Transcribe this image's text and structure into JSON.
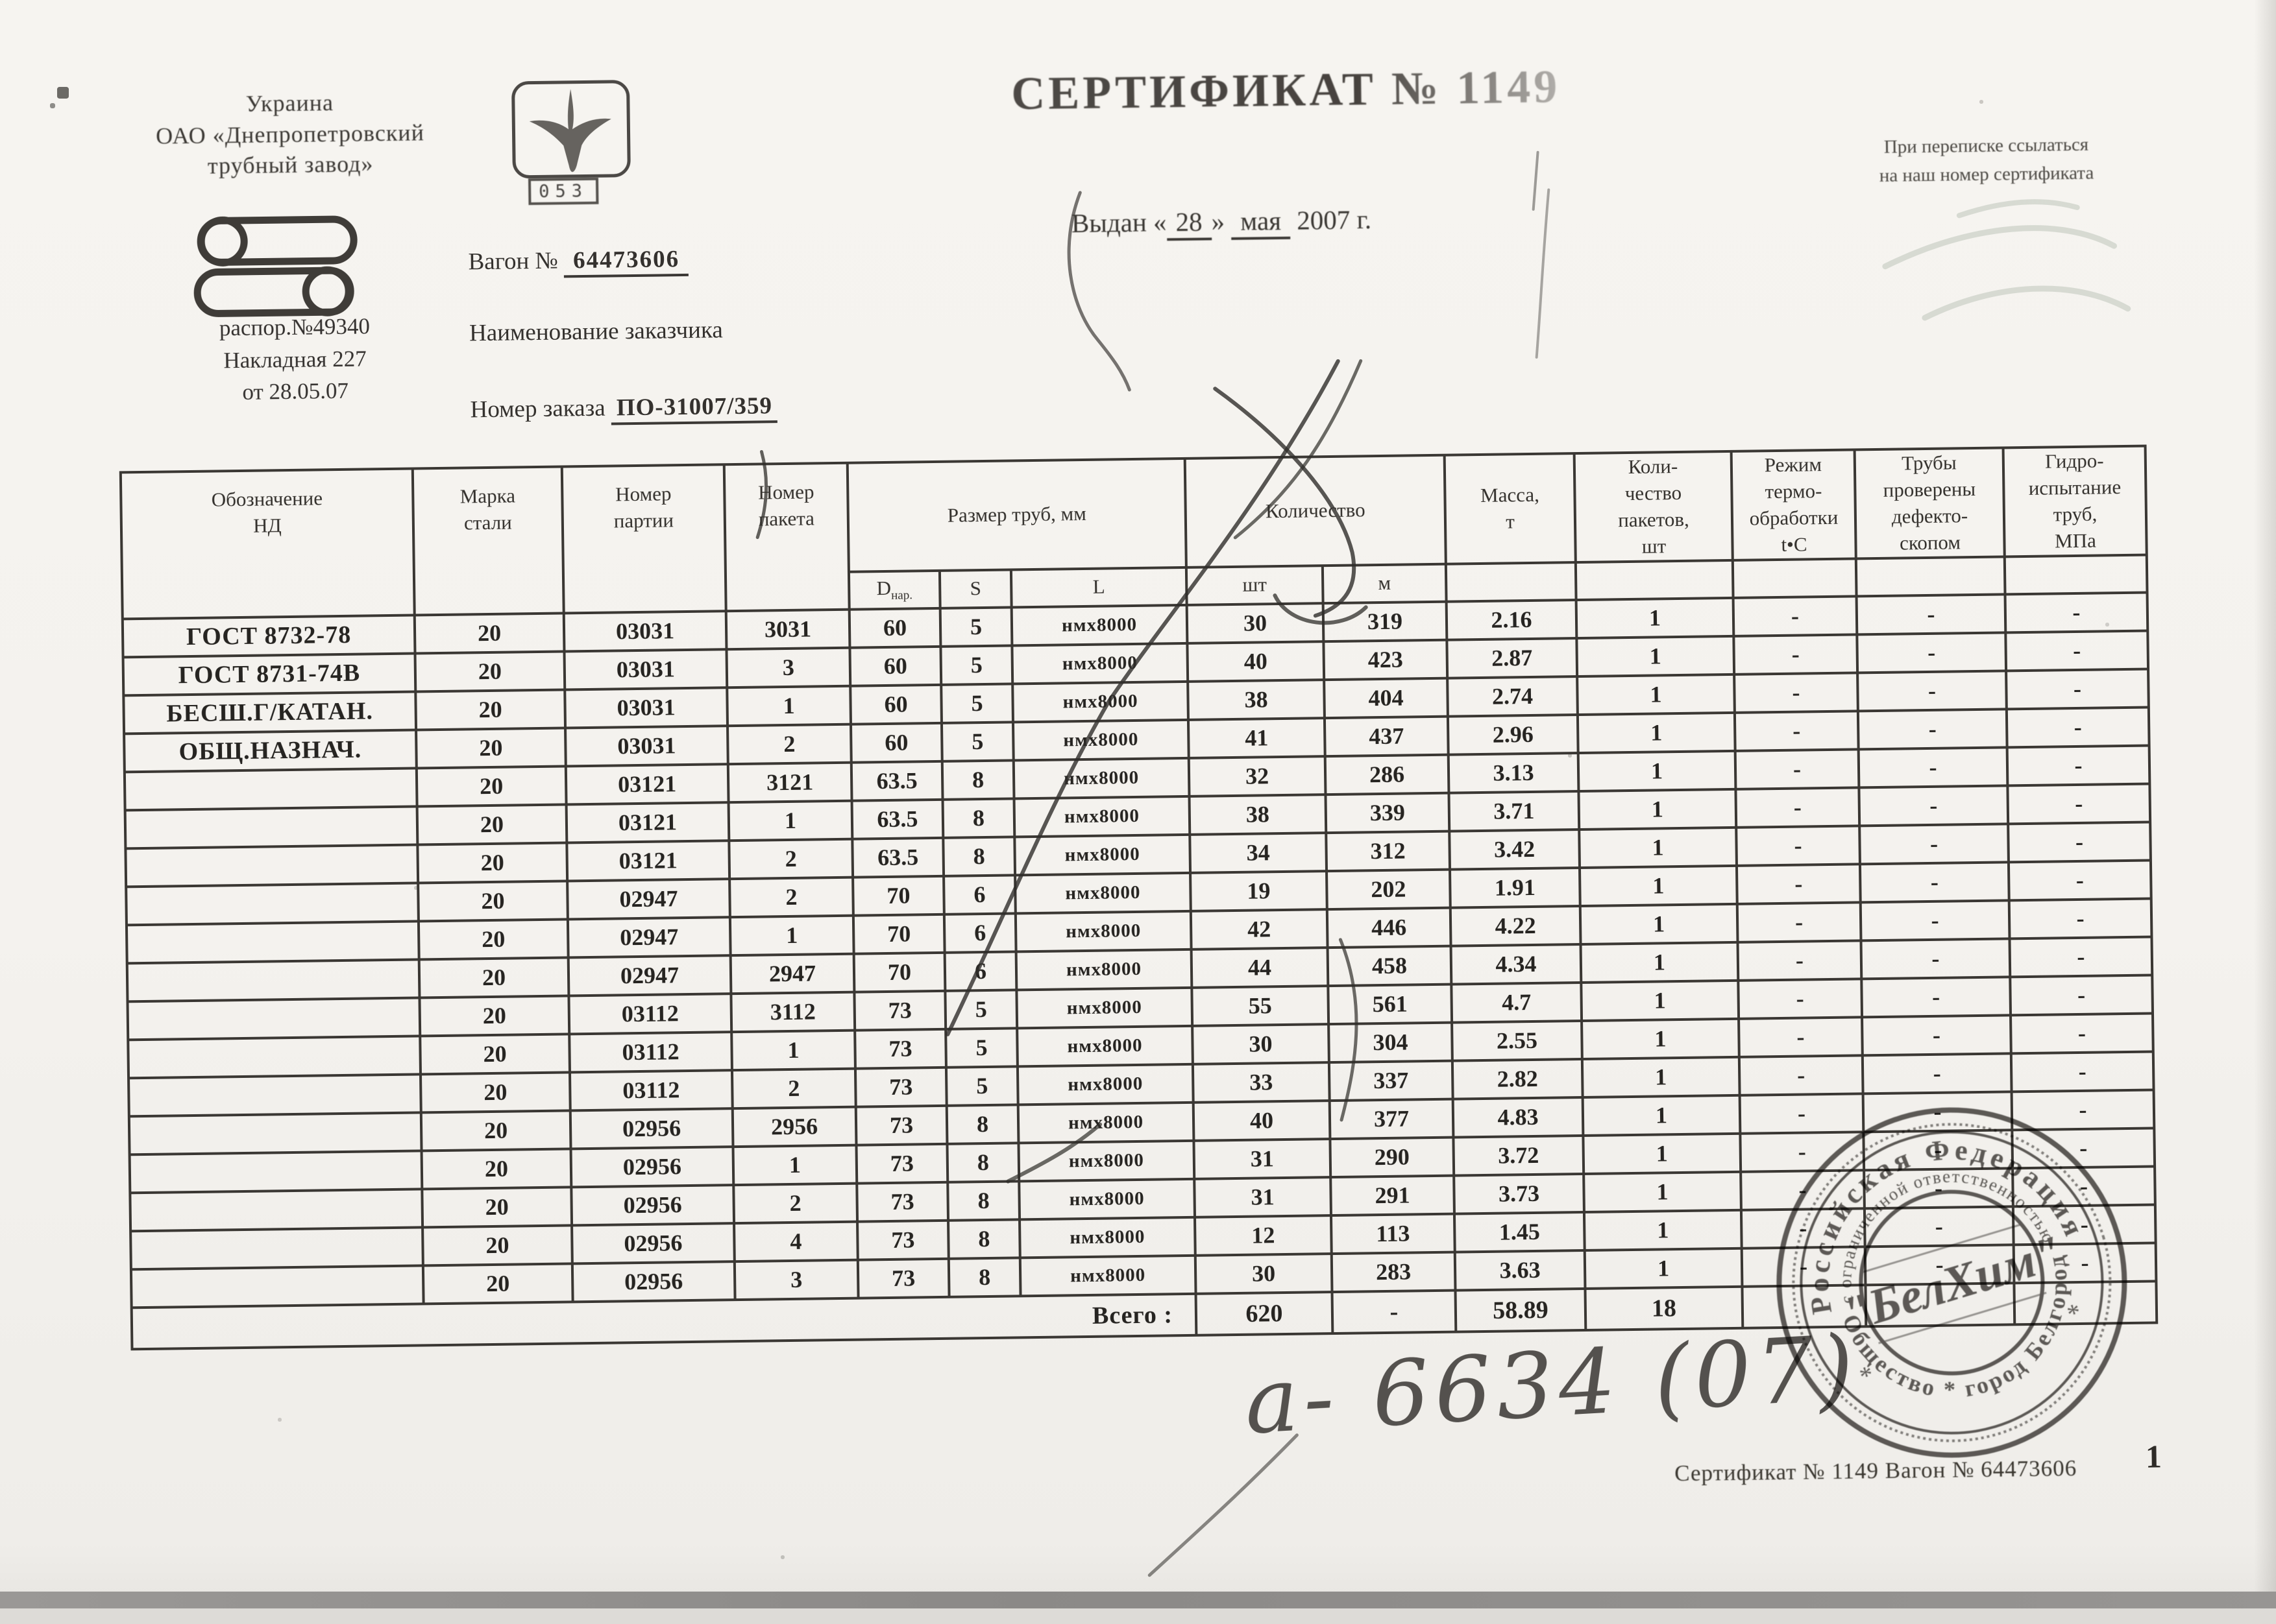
{
  "page": {
    "country": "Украина",
    "org_line1": "ОАО «Днепропетровский",
    "org_line2": "трубный завод»",
    "logo_badge": "053",
    "dispatch_line1": "распор.№49340",
    "dispatch_line2": "Накладная  227",
    "dispatch_line3": "от 28.05.07",
    "wagon_label": "Вагон №",
    "wagon_number": "64473606",
    "customer_label": "Наименование заказчика",
    "order_label": "Номер заказа",
    "order_number": "ПО-31007/359",
    "title": "СЕРТИФИКАТ № 1149",
    "issued_label": "Выдан «",
    "issued_day": "28",
    "issued_close": "»",
    "issued_month": "мая",
    "issued_year": "2007",
    "issued_suffix": "г.",
    "note_line1": "При переписке ссылаться",
    "note_line2": "на наш номер сертификата"
  },
  "table": {
    "columns": {
      "designation": "Обозначение\nНД",
      "steel_grade": "Марка\nстали",
      "batch_no": "Номер\nпартии",
      "pack_no": "Номер\nпакета",
      "pipe_size": "Размер труб, мм",
      "quantity": "Количество",
      "mass": "Масса,\nт",
      "packs_count": "Коли-\nчество\nпакетов,\nшт",
      "heat_mode": "Режим\nтермо-\nобработки\nt•C",
      "defect_check": "Трубы\nпроверены\nдефекто-\nскопом",
      "hydro_test": "Гидро-\nиспытание\nтруб,\nМПа",
      "sub_d": "D",
      "sub_d_sub": "нар.",
      "sub_s": "S",
      "sub_l": "L",
      "sub_sht": "шт",
      "sub_m": "м"
    },
    "rows": [
      [
        "ГОСТ 8732-78",
        "20",
        "03031",
        "3031",
        "60",
        "5",
        "нмх8000",
        "30",
        "319",
        "2.16",
        "1",
        "-",
        "-",
        "-"
      ],
      [
        "ГОСТ 8731-74В",
        "20",
        "03031",
        "3",
        "60",
        "5",
        "нмх8000",
        "40",
        "423",
        "2.87",
        "1",
        "-",
        "-",
        "-"
      ],
      [
        "БЕСШ.Г/КАТАН.",
        "20",
        "03031",
        "1",
        "60",
        "5",
        "нмх8000",
        "38",
        "404",
        "2.74",
        "1",
        "-",
        "-",
        "-"
      ],
      [
        "ОБЩ.НАЗНАЧ.",
        "20",
        "03031",
        "2",
        "60",
        "5",
        "нмх8000",
        "41",
        "437",
        "2.96",
        "1",
        "-",
        "-",
        "-"
      ],
      [
        "",
        "20",
        "03121",
        "3121",
        "63.5",
        "8",
        "нмх8000",
        "32",
        "286",
        "3.13",
        "1",
        "-",
        "-",
        "-"
      ],
      [
        "",
        "20",
        "03121",
        "1",
        "63.5",
        "8",
        "нмх8000",
        "38",
        "339",
        "3.71",
        "1",
        "-",
        "-",
        "-"
      ],
      [
        "",
        "20",
        "03121",
        "2",
        "63.5",
        "8",
        "нмх8000",
        "34",
        "312",
        "3.42",
        "1",
        "-",
        "-",
        "-"
      ],
      [
        "",
        "20",
        "02947",
        "2",
        "70",
        "6",
        "нмх8000",
        "19",
        "202",
        "1.91",
        "1",
        "-",
        "-",
        "-"
      ],
      [
        "",
        "20",
        "02947",
        "1",
        "70",
        "6",
        "нмх8000",
        "42",
        "446",
        "4.22",
        "1",
        "-",
        "-",
        "-"
      ],
      [
        "",
        "20",
        "02947",
        "2947",
        "70",
        "6",
        "нмх8000",
        "44",
        "458",
        "4.34",
        "1",
        "-",
        "-",
        "-"
      ],
      [
        "",
        "20",
        "03112",
        "3112",
        "73",
        "5",
        "нмх8000",
        "55",
        "561",
        "4.7",
        "1",
        "-",
        "-",
        "-"
      ],
      [
        "",
        "20",
        "03112",
        "1",
        "73",
        "5",
        "нмх8000",
        "30",
        "304",
        "2.55",
        "1",
        "-",
        "-",
        "-"
      ],
      [
        "",
        "20",
        "03112",
        "2",
        "73",
        "5",
        "нмх8000",
        "33",
        "337",
        "2.82",
        "1",
        "-",
        "-",
        "-"
      ],
      [
        "",
        "20",
        "02956",
        "2956",
        "73",
        "8",
        "нмх8000",
        "40",
        "377",
        "4.83",
        "1",
        "-",
        "-",
        "-"
      ],
      [
        "",
        "20",
        "02956",
        "1",
        "73",
        "8",
        "нмх8000",
        "31",
        "290",
        "3.72",
        "1",
        "-",
        "-",
        "-"
      ],
      [
        "",
        "20",
        "02956",
        "2",
        "73",
        "8",
        "нмх8000",
        "31",
        "291",
        "3.73",
        "1",
        "-",
        "-",
        "-"
      ],
      [
        "",
        "20",
        "02956",
        "4",
        "73",
        "8",
        "нмх8000",
        "12",
        "113",
        "1.45",
        "1",
        "-",
        "-",
        "-"
      ],
      [
        "",
        "20",
        "02956",
        "3",
        "73",
        "8",
        "нмх8000",
        "30",
        "283",
        "3.63",
        "1",
        "-",
        "-",
        "-"
      ]
    ],
    "totals": {
      "label": "Всего :",
      "qty_sht": "620",
      "qty_m": "-",
      "mass": "58.89",
      "packs": "18"
    }
  },
  "stamp": {
    "arc_top": "Российская Федерация",
    "arc_mid": "с ограниченной ответственностью",
    "arc_bottom": "Общество  *  город Белгород",
    "center": "\"БелХим\""
  },
  "annotations": {
    "handwriting": "а-  6634 (07)"
  },
  "footer": {
    "line": "Сертификат № 1149 Вагон № 64473606",
    "page": "1"
  }
}
